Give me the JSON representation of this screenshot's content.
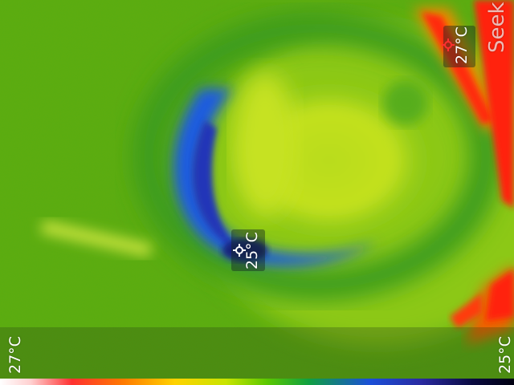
{
  "image": {
    "description_tags": [
      "thermal-camera-view",
      "rainbow-palette"
    ],
    "colors": {
      "background_green": "#58ad12",
      "warm_yellow": "#c9e31a",
      "cold_blue": "#1f5ce0",
      "hot_red": "#ff2010"
    }
  },
  "brand": {
    "logo_text": "Seek"
  },
  "spot_hot": {
    "label": "27°C",
    "icon": "crosshair-icon"
  },
  "spot_cold": {
    "label": "25°C",
    "icon": "crosshair-icon"
  },
  "scale": {
    "max_label": "27°C",
    "min_label": "25°C"
  }
}
